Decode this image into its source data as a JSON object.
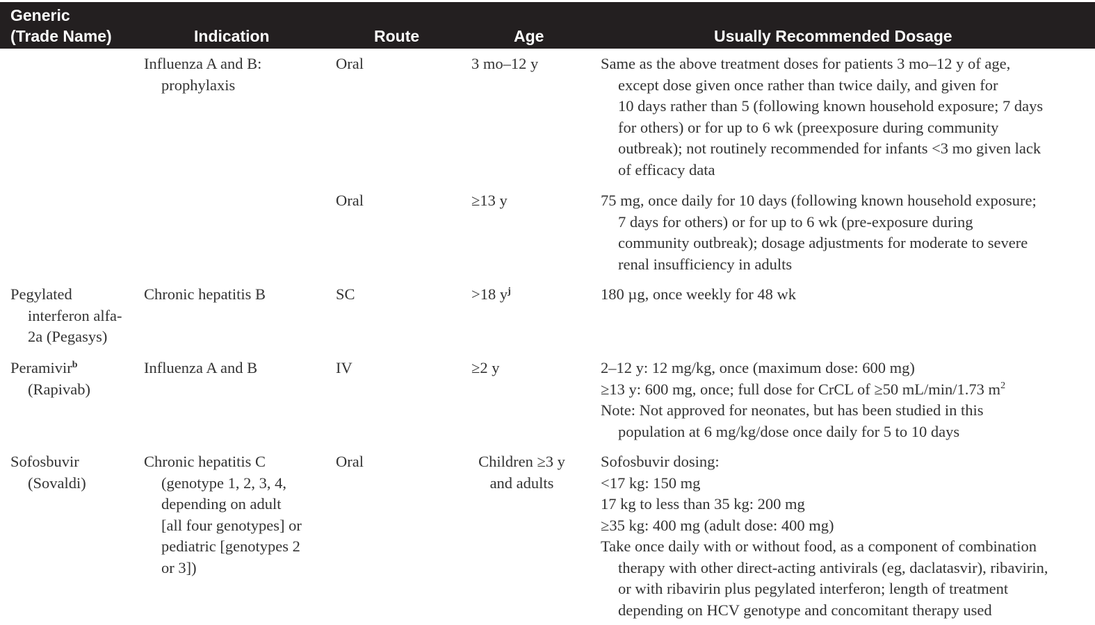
{
  "header": {
    "generic": "Generic",
    "trade_name": "(Trade Name)",
    "indication": "Indication",
    "route": "Route",
    "age": "Age",
    "dosage": "Usually Recommended Dosage"
  },
  "rows": [
    {
      "generic": [],
      "indication": [
        "Influenza A and B:",
        "prophylaxis"
      ],
      "route": "Oral",
      "age": [
        "3 mo–12 y"
      ],
      "dosage": [
        "Same as the above treatment doses for patients 3 mo–12 y of age,",
        "except dose given once rather than twice daily, and given for",
        "10 days rather than 5 (following known household exposure; 7 days",
        "for others) or for up to 6 wk (preexposure during community",
        "outbreak); not routinely recommended for infants <3 mo given lack",
        "of efficacy data"
      ]
    },
    {
      "generic": [],
      "indication": [],
      "route": "Oral",
      "age": [
        "≥13 y"
      ],
      "dosage": [
        "75 mg, once daily for 10 days (following known household exposure;",
        "7 days for others) or for up to 6 wk (pre-exposure during",
        "community outbreak); dosage adjustments for moderate to severe",
        "renal insufficiency in adults"
      ]
    },
    {
      "generic": [
        "Pegylated",
        "interferon alfa-",
        "2a (Pegasys)"
      ],
      "indication": [
        "Chronic hepatitis B"
      ],
      "route": "SC",
      "age": [
        ">18 y"
      ],
      "age_mark": "j",
      "dosage": [
        "180 µg, once weekly for 48 wk"
      ]
    },
    {
      "generic": [
        "Peramivir",
        "(Rapivab)"
      ],
      "generic_mark": "b",
      "indication": [
        "Influenza A and B"
      ],
      "route": "IV",
      "age": [
        "≥2 y"
      ],
      "dosage_a": "2–12 y: 12 mg/kg, once (maximum dose: 600 mg)",
      "dosage_b": "≥13 y: 600 mg, once; full dose for CrCL of ≥50 mL/min/1.73 m",
      "dosage_b_exp": "2",
      "dosage_c": [
        "Note: Not approved for neonates, but has been studied in this",
        "population at 6 mg/kg/dose once daily for 5 to 10 days"
      ]
    },
    {
      "generic": [
        "Sofosbuvir",
        "(Sovaldi)"
      ],
      "indication": [
        "Chronic hepatitis C",
        "(genotype 1, 2, 3, 4,",
        "depending on adult",
        "[all four genotypes] or",
        "pediatric [genotypes 2",
        "or 3])"
      ],
      "route": "Oral",
      "age": [
        "Children ≥3 y",
        "and adults"
      ],
      "dosage_list": [
        "Sofosbuvir dosing:",
        "<17 kg: 150 mg",
        "17 kg to less than 35 kg: 200 mg",
        "≥35 kg: 400 mg (adult dose: 400 mg)"
      ],
      "dosage_tail": [
        "Take once daily with or without food, as a component of combination",
        "therapy with other direct-acting antivirals (eg, daclatasvir), ribavirin,",
        "or with ribavirin plus pegylated interferon; length of treatment",
        "depending on HCV genotype and concomitant therapy used"
      ]
    }
  ]
}
